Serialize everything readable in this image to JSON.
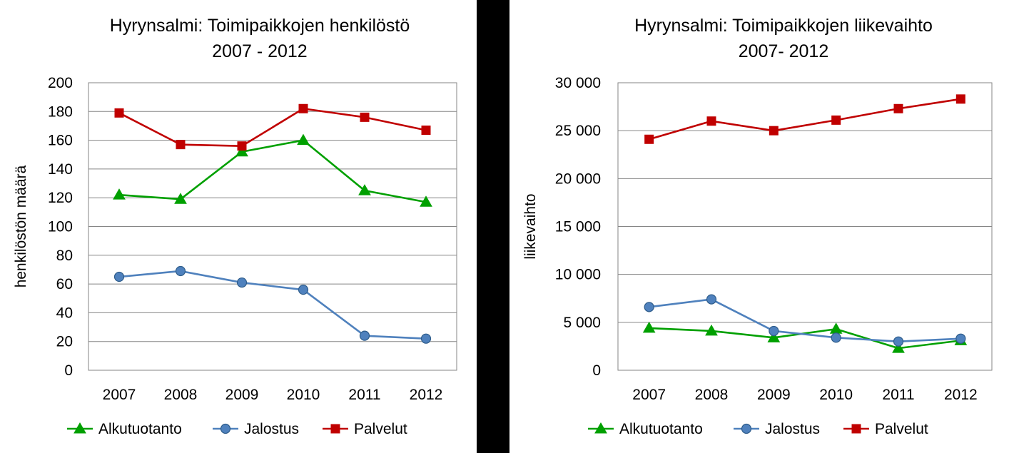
{
  "chart_data": [
    {
      "type": "line",
      "title": [
        "Hyrynsalmi: Toimipaikkojen henkilöstö",
        "2007 - 2012"
      ],
      "xlabel": "",
      "ylabel": "henkilöstön määrä",
      "categories": [
        "2007",
        "2008",
        "2009",
        "2010",
        "2011",
        "2012"
      ],
      "ylim": [
        0,
        200
      ],
      "yticks": [
        0,
        20,
        40,
        60,
        80,
        100,
        120,
        140,
        160,
        180,
        200
      ],
      "ytick_labels": [
        "0",
        "20",
        "40",
        "60",
        "80",
        "100",
        "120",
        "140",
        "160",
        "180",
        "200"
      ],
      "grid": true,
      "legend": "bottom",
      "series": [
        {
          "name": "Alkutuotanto",
          "values": [
            122,
            119,
            152,
            160,
            125,
            117
          ],
          "color": "#00A000",
          "marker": "triangle"
        },
        {
          "name": "Jalostus",
          "values": [
            65,
            69,
            61,
            56,
            24,
            22
          ],
          "color": "#4F81BD",
          "marker": "circle"
        },
        {
          "name": "Palvelut",
          "values": [
            179,
            157,
            156,
            182,
            176,
            167
          ],
          "color": "#C00000",
          "marker": "square"
        }
      ]
    },
    {
      "type": "line",
      "title": [
        "Hyrynsalmi: Toimipaikkojen liikevaihto",
        "2007- 2012"
      ],
      "xlabel": "",
      "ylabel": "liikevaihto",
      "categories": [
        "2007",
        "2008",
        "2009",
        "2010",
        "2011",
        "2012"
      ],
      "ylim": [
        0,
        30000
      ],
      "yticks": [
        0,
        5000,
        10000,
        15000,
        20000,
        25000,
        30000
      ],
      "ytick_labels": [
        "0",
        "5 000",
        "10 000",
        "15 000",
        "20 000",
        "25 000",
        "30 000"
      ],
      "grid": true,
      "legend": "bottom",
      "series": [
        {
          "name": "Alkutuotanto",
          "values": [
            4400,
            4100,
            3400,
            4300,
            2300,
            3100
          ],
          "color": "#00A000",
          "marker": "triangle"
        },
        {
          "name": "Jalostus",
          "values": [
            6600,
            7400,
            4100,
            3400,
            3000,
            3300
          ],
          "color": "#4F81BD",
          "marker": "circle"
        },
        {
          "name": "Palvelut",
          "values": [
            24100,
            26000,
            25000,
            26100,
            27300,
            28300
          ],
          "color": "#C00000",
          "marker": "square"
        }
      ]
    }
  ]
}
